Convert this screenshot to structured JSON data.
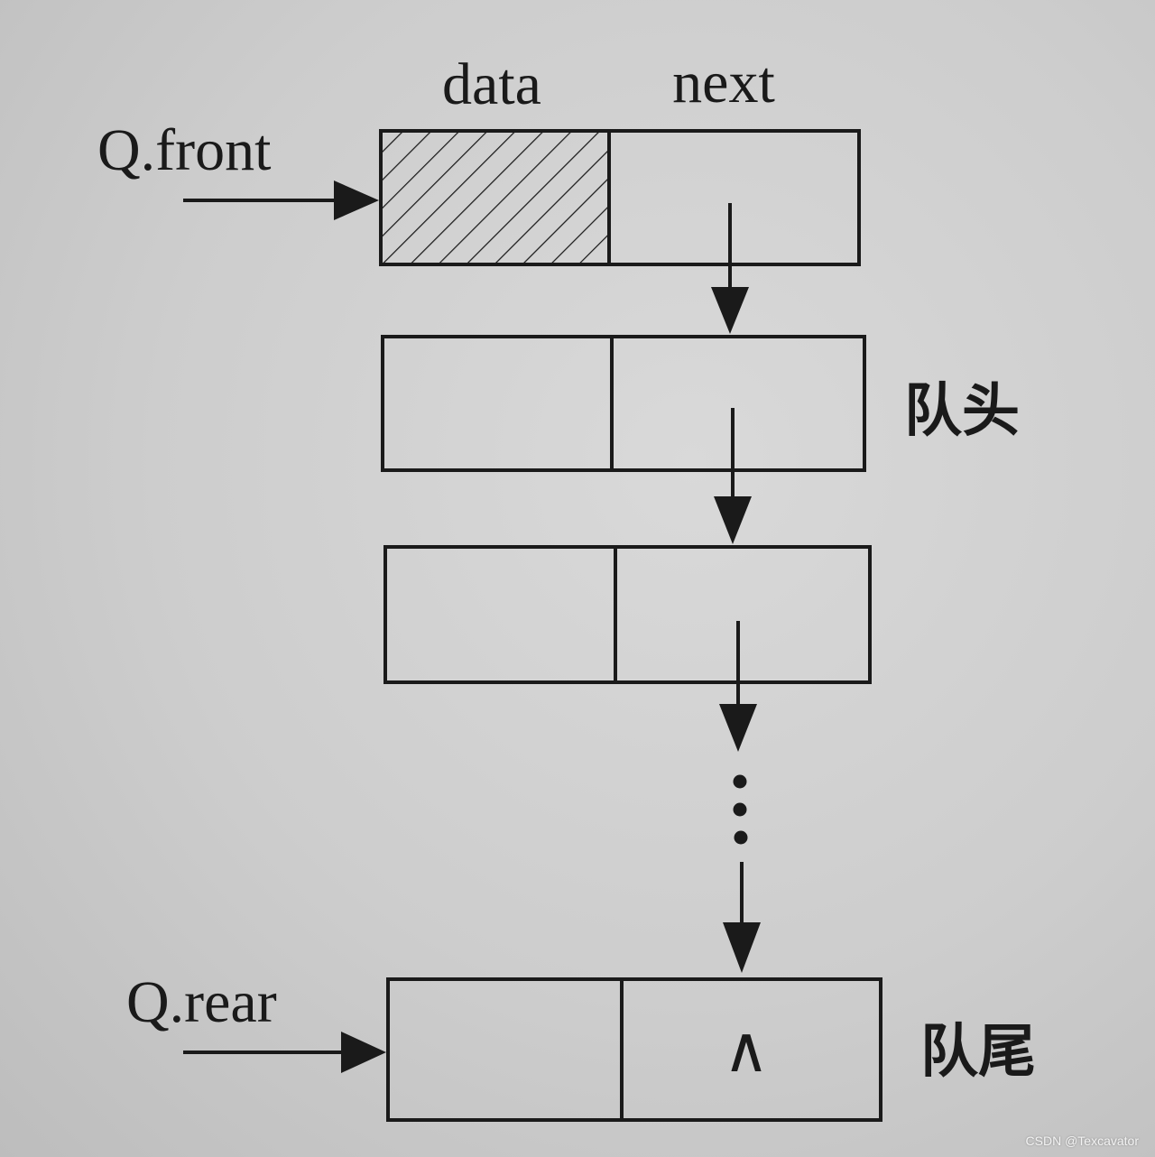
{
  "column_labels": {
    "data": "data",
    "next": "next"
  },
  "pointers": {
    "front": "Q.front",
    "rear": "Q.rear"
  },
  "node_labels": {
    "head": "队头",
    "tail": "队尾"
  },
  "null_symbol": "∧",
  "ellipsis": "⋮",
  "watermark": "CSDN @Texcavator"
}
